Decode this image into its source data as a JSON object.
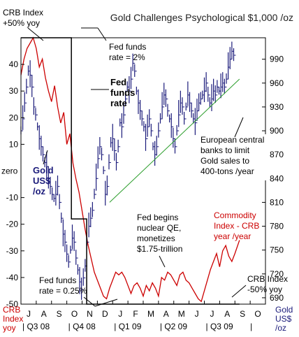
{
  "chart_data": {
    "type": "line",
    "title": "Gold Challenges Psychological $1,000 /oz",
    "left_axis": {
      "label_lines": [
        "CRB",
        "Index",
        "yoy"
      ],
      "ticks": [
        40,
        30,
        20,
        10,
        -10,
        -20,
        -30,
        -40,
        -50
      ],
      "zero_label": "zero",
      "ylim": [
        -50,
        50
      ]
    },
    "right_axis": {
      "label_lines": [
        "Gold",
        "US$",
        "/oz"
      ],
      "ticks": [
        990,
        960,
        930,
        900,
        870,
        840,
        810,
        780,
        750,
        720,
        690
      ],
      "ylim": [
        682,
        1017
      ]
    },
    "x_months": [
      "J",
      "A",
      "S",
      "O",
      "N",
      "D",
      "J",
      "F",
      "M",
      "A",
      "M",
      "J",
      "J",
      "A",
      "S",
      "O"
    ],
    "x_quarters": [
      "Q3 08",
      "Q4 08",
      "Q1 09",
      "Q2 09",
      "Q3 09"
    ],
    "series": [
      {
        "name": "Commodity Index - CRB year /year",
        "color": "#cc0000",
        "axis": "left",
        "t": [
          0.0,
          0.2,
          0.4,
          0.6,
          0.8,
          1.0,
          1.2,
          1.4,
          1.6,
          1.8,
          2.0,
          2.2,
          2.4,
          2.6,
          2.8,
          3.0,
          3.2,
          3.4,
          3.6,
          3.8,
          4.0,
          4.2,
          4.4,
          4.6,
          4.8,
          5.0,
          5.2,
          5.4,
          5.6,
          5.8,
          6.0,
          6.2,
          6.4,
          6.6,
          6.8,
          7.0,
          7.2,
          7.4,
          7.6,
          7.8,
          8.0,
          8.2,
          8.4,
          8.6,
          8.8,
          9.0,
          9.2,
          9.4,
          9.6,
          9.8,
          10.0,
          10.2,
          10.4,
          10.6,
          10.8,
          11.0,
          11.2,
          11.4,
          11.6,
          11.8,
          12.0,
          12.2,
          12.4,
          12.6,
          12.8,
          13.0,
          13.2,
          13.4,
          13.6,
          13.8,
          14.0,
          14.3
        ],
        "values": [
          36,
          42,
          46,
          48,
          50,
          46,
          39,
          42,
          35,
          30,
          26,
          32,
          24,
          18,
          22,
          10,
          14,
          3,
          -3,
          -8,
          -15,
          -22,
          -28,
          -33,
          -38,
          -41,
          -44,
          -47,
          -48,
          -44,
          -41,
          -38,
          -39,
          -38,
          -40,
          -43,
          -46,
          -43,
          -42,
          -44,
          -47,
          -43,
          -45,
          -42,
          -44,
          -47,
          -40,
          -41,
          -38,
          -39,
          -41,
          -43,
          -39,
          -38,
          -41,
          -42,
          -44,
          -46,
          -48,
          -49,
          -45,
          -41,
          -37,
          -34,
          -31,
          -36,
          -30,
          -28,
          -32,
          -34,
          -31,
          -26
        ]
      },
      {
        "name": "Gold US$ /oz",
        "color": "#1a1a7a",
        "axis": "right",
        "style": "ohlc",
        "t": [
          0.0,
          0.12,
          0.24,
          0.36,
          0.48,
          0.6,
          0.72,
          0.84,
          0.96,
          1.08,
          1.2,
          1.32,
          1.44,
          1.56,
          1.68,
          1.8,
          1.92,
          2.04,
          2.16,
          2.28,
          2.4,
          2.52,
          2.64,
          2.76,
          2.88,
          3.0,
          3.12,
          3.24,
          3.36,
          3.48,
          3.6,
          3.72,
          3.84,
          3.96,
          4.08,
          4.2,
          4.32,
          4.44,
          4.56,
          4.68,
          4.8,
          4.92,
          5.04,
          5.16,
          5.28,
          5.4,
          5.52,
          5.64,
          5.76,
          5.88,
          6.0,
          6.12,
          6.24,
          6.36,
          6.48,
          6.6,
          6.72,
          6.84,
          6.96,
          7.08,
          7.2,
          7.32,
          7.44,
          7.56,
          7.68,
          7.8,
          7.92,
          8.04,
          8.16,
          8.28,
          8.4,
          8.52,
          8.64,
          8.76,
          8.88,
          9.0,
          9.12,
          9.24,
          9.36,
          9.48,
          9.6,
          9.72,
          9.84,
          9.96,
          10.08,
          10.2,
          10.32,
          10.44,
          10.56,
          10.68,
          10.8,
          10.92,
          11.04,
          11.16,
          11.28,
          11.4,
          11.52,
          11.64,
          11.76,
          11.88,
          12.0,
          12.12,
          12.24,
          12.36,
          12.48,
          12.6,
          12.72,
          12.84,
          12.96,
          13.08,
          13.2,
          13.32,
          13.44,
          13.56,
          13.68,
          13.8,
          13.92
        ],
        "values": [
          900,
          915,
          935,
          955,
          975,
          970,
          955,
          930,
          920,
          905,
          890,
          880,
          870,
          860,
          855,
          840,
          830,
          820,
          815,
          820,
          830,
          810,
          790,
          770,
          760,
          745,
          735,
          750,
          765,
          760,
          740,
          725,
          710,
          700,
          715,
          730,
          760,
          780,
          790,
          800,
          820,
          840,
          865,
          880,
          870,
          850,
          820,
          830,
          860,
          885,
          890,
          875,
          860,
          880,
          910,
          905,
          920,
          940,
          955,
          950,
          965,
          985,
          975,
          950,
          935,
          925,
          915,
          905,
          890,
          905,
          915,
          900,
          880,
          870,
          880,
          900,
          915,
          930,
          945,
          940,
          925,
          915,
          905,
          890,
          880,
          900,
          920,
          935,
          930,
          915,
          930,
          945,
          935,
          925,
          915,
          910,
          925,
          935,
          940,
          945,
          950,
          960,
          945,
          935,
          940,
          950,
          945,
          955,
          950,
          955,
          960,
          955,
          965,
          980,
          990,
          1000,
          995
        ]
      },
      {
        "name": "Fed funds rate",
        "color": "#000000",
        "axis": "left",
        "steps": [
          [
            0.0,
            50
          ],
          [
            3.3,
            50
          ],
          [
            3.3,
            -18
          ],
          [
            4.3,
            -18
          ],
          [
            4.3,
            -50
          ],
          [
            14.3,
            -50
          ]
        ]
      },
      {
        "name": "trend",
        "color": "#2a9d2a",
        "axis": "right",
        "line": [
          [
            5.8,
            810
          ],
          [
            14.3,
            965
          ]
        ]
      }
    ],
    "annotations": [
      {
        "text_lines": [
          "CRB Index",
          "+50% yoy"
        ]
      },
      {
        "text_lines": [
          "Fed funds",
          "rate = 2%"
        ]
      },
      {
        "text_lines": [
          "Fed",
          "funds",
          "rate"
        ]
      },
      {
        "text_lines": [
          "European central",
          "banks to limit",
          "Gold sales to",
          "400-tons /year"
        ]
      },
      {
        "text_lines": [
          "Fed begins",
          "nuclear QE,",
          "monetizes",
          "$1.75-trillion"
        ]
      },
      {
        "text_lines": [
          "Commodity",
          "Index - CRB",
          "year /year"
        ]
      },
      {
        "text_lines": [
          "Fed funds",
          "rate = 0.25%"
        ]
      },
      {
        "text_lines": [
          "CRB Index",
          "-50% yoy"
        ]
      },
      {
        "text_lines": [
          "Gold",
          "US$",
          "/oz"
        ]
      }
    ]
  }
}
